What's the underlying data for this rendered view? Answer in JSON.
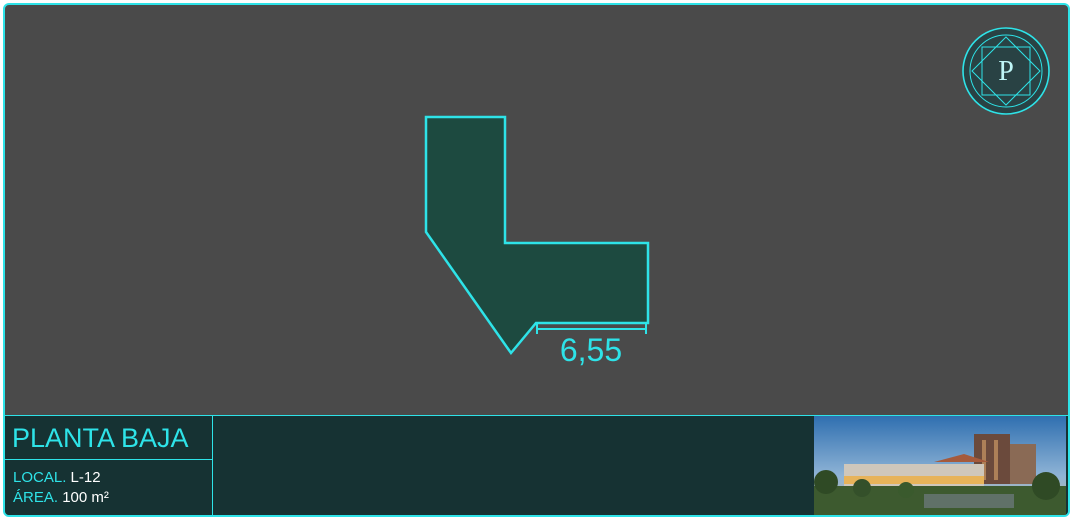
{
  "floor_plan": {
    "dimension_label": "6,55",
    "unit_shape_color": "#1d4a40",
    "outline_color": "#2ee3e8"
  },
  "logo": {
    "letter": "P"
  },
  "info": {
    "floor_name": "PLANTA BAJA",
    "local_label": "LOCAL.",
    "local_value": "L-12",
    "area_label": "ÁREA.",
    "area_value": "100 m²"
  },
  "colors": {
    "accent": "#2ee3e8",
    "background": "#4a4a4a",
    "panel": "#163233"
  }
}
